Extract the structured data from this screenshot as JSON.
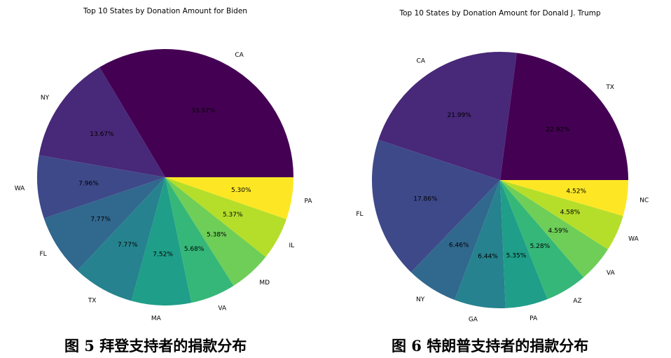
{
  "chart_data": [
    {
      "type": "pie",
      "title": "Top 10 States by Donation Amount for Biden",
      "categories": [
        "CA",
        "NY",
        "WA",
        "FL",
        "TX",
        "MA",
        "VA",
        "MD",
        "IL",
        "PA"
      ],
      "values": [
        33.57,
        13.67,
        7.96,
        7.77,
        7.77,
        7.52,
        5.68,
        5.38,
        5.37,
        5.3
      ],
      "labels": [
        "33.57%",
        "13.67%",
        "7.96%",
        "7.77%",
        "7.77%",
        "7.52%",
        "5.68%",
        "5.38%",
        "5.37%",
        "5.30%"
      ],
      "colors": [
        "#440154",
        "#482878",
        "#3e4989",
        "#31688e",
        "#26828e",
        "#1f9e89",
        "#35b779",
        "#6ece58",
        "#b5de2b",
        "#fde725"
      ],
      "start_angle_deg": 0,
      "direction": "counterclockwise",
      "caption": "图 5 拜登支持者的捐款分布"
    },
    {
      "type": "pie",
      "title": "Top 10 States by Donation Amount for Donald J. Trump",
      "categories": [
        "TX",
        "CA",
        "FL",
        "NY",
        "GA",
        "PA",
        "AZ",
        "VA",
        "WA",
        "NC"
      ],
      "values": [
        22.92,
        21.99,
        17.86,
        6.46,
        6.44,
        5.35,
        5.28,
        4.59,
        4.58,
        4.52
      ],
      "labels": [
        "22.92%",
        "21.99%",
        "17.86%",
        "6.46%",
        "6.44%",
        "5.35%",
        "5.28%",
        "4.59%",
        "4.58%",
        "4.52%"
      ],
      "colors": [
        "#440154",
        "#482878",
        "#3e4989",
        "#31688e",
        "#26828e",
        "#1f9e89",
        "#35b779",
        "#6ece58",
        "#b5de2b",
        "#fde725"
      ],
      "start_angle_deg": 0,
      "direction": "counterclockwise",
      "caption": "图 6 特朗普支持者的捐款分布"
    }
  ]
}
